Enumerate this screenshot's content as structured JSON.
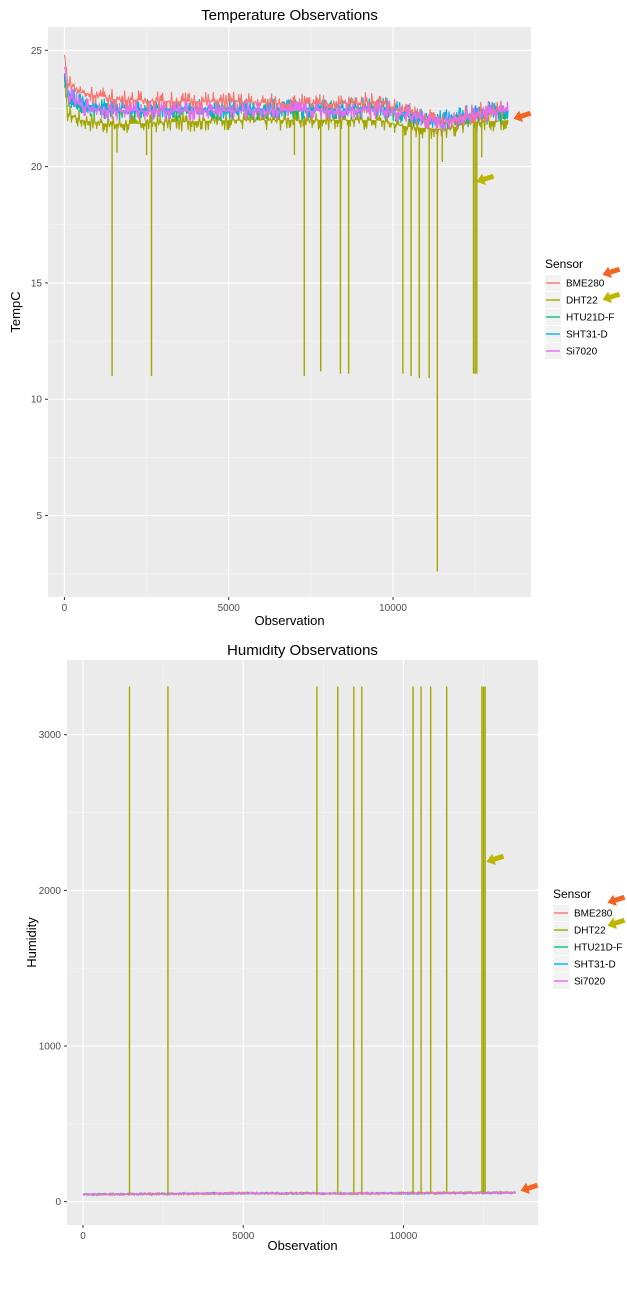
{
  "chart_data": [
    {
      "type": "line",
      "title": "Temperature Observations",
      "xlabel": "Observation",
      "ylabel": "TempC",
      "xlim": [
        -500,
        14200
      ],
      "ylim": [
        1.5,
        26
      ],
      "xticks": [
        0,
        5000,
        10000
      ],
      "yticks": [
        5,
        10,
        15,
        20,
        25
      ],
      "grid": true,
      "legend": {
        "title": "Sensor",
        "position": "right"
      },
      "colors": {
        "BME280": "#F8766D",
        "DHT22": "#A3A500",
        "HTU21D-F": "#00BF7D",
        "SHT31-D": "#00B0F6",
        "Si7020": "#E76BF3"
      },
      "series": [
        {
          "name": "BME280",
          "x": [
            0,
            100,
            500,
            1500,
            3000,
            5000,
            7000,
            8500,
            9500,
            10500,
            11500,
            12500,
            13500
          ],
          "y": [
            24.8,
            23.6,
            23.2,
            22.9,
            22.8,
            22.8,
            22.7,
            22.7,
            22.8,
            22.3,
            21.9,
            22.3,
            22.5
          ]
        },
        {
          "name": "DHT22",
          "x": [
            0,
            100,
            500,
            1500,
            3000,
            5000,
            7000,
            8500,
            9500,
            10500,
            11500,
            12500,
            13500
          ],
          "y": [
            23.4,
            22.3,
            22.0,
            21.8,
            21.9,
            22.0,
            22.0,
            22.0,
            22.0,
            21.7,
            21.6,
            21.9,
            22.0
          ]
        },
        {
          "name": "HTU21D-F",
          "x": [
            0,
            100,
            500,
            1500,
            3000,
            5000,
            7000,
            8500,
            9500,
            10500,
            11500,
            12500,
            13500
          ],
          "y": [
            23.9,
            23.0,
            22.6,
            22.4,
            22.4,
            22.4,
            22.4,
            22.4,
            22.5,
            22.2,
            21.9,
            22.2,
            22.3
          ]
        },
        {
          "name": "SHT31-D",
          "x": [
            0,
            100,
            500,
            1500,
            3000,
            5000,
            7000,
            8500,
            9500,
            10500,
            11500,
            12500,
            13500
          ],
          "y": [
            24.0,
            23.1,
            22.7,
            22.5,
            22.5,
            22.5,
            22.5,
            22.5,
            22.6,
            22.3,
            22.0,
            22.3,
            22.4
          ]
        },
        {
          "name": "Si7020",
          "x": [
            0,
            100,
            500,
            1500,
            3000,
            5000,
            7000,
            8500,
            9500,
            10500,
            11500,
            12500,
            13500
          ],
          "y": [
            24.2,
            23.1,
            22.6,
            22.4,
            22.4,
            22.4,
            22.4,
            22.4,
            22.5,
            22.2,
            21.8,
            22.2,
            22.4
          ]
        }
      ],
      "spikes": {
        "series": "DHT22",
        "x": [
          1450,
          1600,
          2500,
          2650,
          7000,
          7300,
          7800,
          8400,
          8650,
          10300,
          10550,
          10800,
          11100,
          11350,
          11500,
          12450,
          12500,
          12550,
          12700
        ],
        "y": [
          11.0,
          20.6,
          20.5,
          11.0,
          20.5,
          11.0,
          11.2,
          11.1,
          11.1,
          11.1,
          11.0,
          10.9,
          10.9,
          2.6,
          20.2,
          11.1,
          11.1,
          11.1,
          20.4
        ]
      }
    },
    {
      "type": "line",
      "title": "Humidity Observations",
      "xlabel": "Observation",
      "ylabel": "Humidity",
      "xlim": [
        -500,
        14200
      ],
      "ylim": [
        -150,
        3480
      ],
      "xticks": [
        0,
        5000,
        10000
      ],
      "yticks": [
        0,
        1000,
        2000,
        3000
      ],
      "grid": true,
      "legend": {
        "title": "Sensor",
        "position": "right"
      },
      "colors": {
        "BME280": "#F8766D",
        "DHT22": "#A3A500",
        "HTU21D-F": "#00BF7D",
        "SHT31-D": "#00B0F6",
        "Si7020": "#E76BF3"
      },
      "series": [
        {
          "name": "BME280",
          "x": [
            0,
            2000,
            5000,
            8000,
            11000,
            13500
          ],
          "y": [
            44,
            47,
            52,
            50,
            53,
            56
          ]
        },
        {
          "name": "DHT22",
          "x": [
            0,
            2000,
            5000,
            8000,
            11000,
            13500
          ],
          "y": [
            48,
            51,
            56,
            54,
            57,
            60
          ]
        },
        {
          "name": "HTU21D-F",
          "x": [
            0,
            2000,
            5000,
            8000,
            11000,
            13500
          ],
          "y": [
            46,
            49,
            54,
            52,
            55,
            58
          ]
        },
        {
          "name": "SHT31-D",
          "x": [
            0,
            2000,
            5000,
            8000,
            11000,
            13500
          ],
          "y": [
            45,
            48,
            53,
            51,
            54,
            57
          ]
        },
        {
          "name": "Si7020",
          "x": [
            0,
            2000,
            5000,
            8000,
            11000,
            13500
          ],
          "y": [
            47,
            50,
            55,
            53,
            56,
            59
          ]
        }
      ],
      "spikes": {
        "series": "DHT22",
        "x": [
          1450,
          2650,
          7300,
          7950,
          8450,
          8700,
          10300,
          10550,
          10850,
          11350,
          12450,
          12500,
          12550
        ],
        "y": [
          3310,
          3310,
          3310,
          3310,
          3310,
          3310,
          3310,
          3310,
          3310,
          3310,
          3310,
          3310,
          3310
        ]
      }
    }
  ]
}
